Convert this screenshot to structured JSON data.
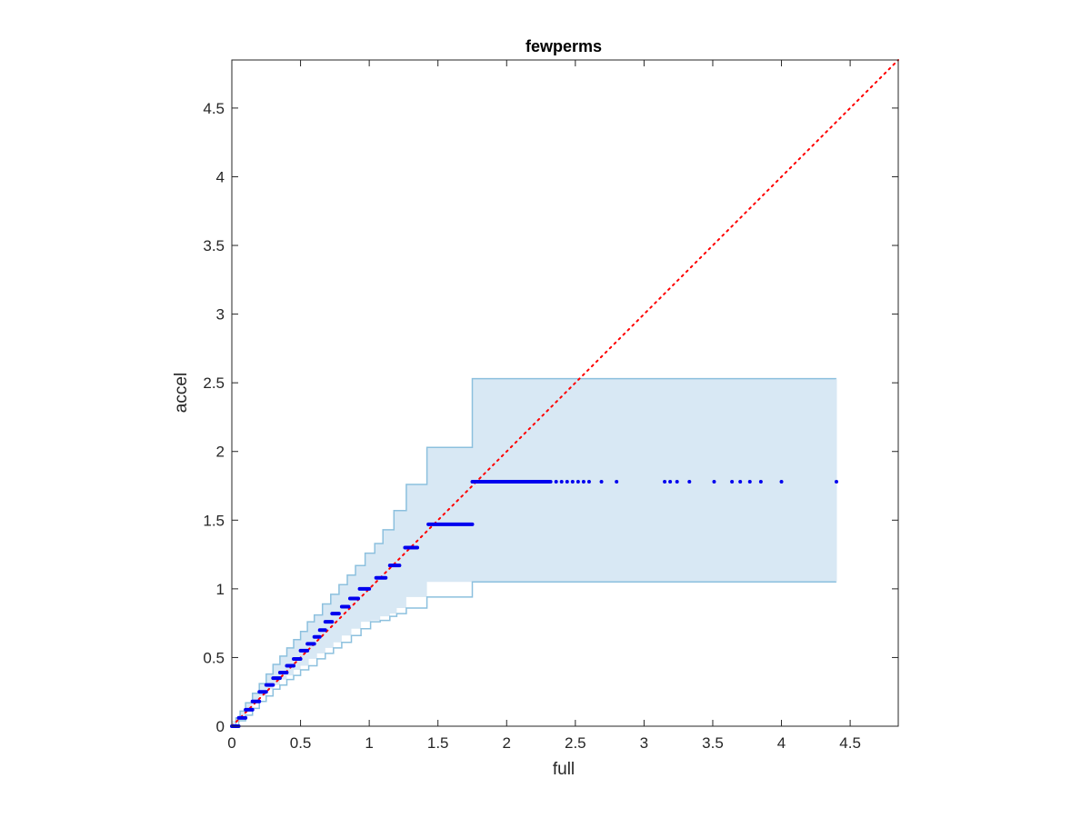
{
  "chart_data": {
    "type": "scatter",
    "title": "fewperms",
    "xlabel": "full",
    "ylabel": "accel",
    "xlim": [
      0,
      4.85
    ],
    "ylim": [
      0,
      4.85
    ],
    "xticks": [
      "0",
      "0.5",
      "1",
      "1.5",
      "2",
      "2.5",
      "3",
      "3.5",
      "4",
      "4.5"
    ],
    "yticks": [
      "0",
      "0.5",
      "1",
      "1.5",
      "2",
      "2.5",
      "3",
      "3.5",
      "4",
      "4.5"
    ],
    "grid": false,
    "reference_line": {
      "x": [
        0,
        4.85
      ],
      "y": [
        0,
        4.85
      ],
      "style": "dotted"
    },
    "band": {
      "upper": [
        [
          0,
          0
        ],
        [
          0.03,
          0.06
        ],
        [
          0.06,
          0.11
        ],
        [
          0.1,
          0.17
        ],
        [
          0.15,
          0.24
        ],
        [
          0.2,
          0.31
        ],
        [
          0.25,
          0.38
        ],
        [
          0.3,
          0.45
        ],
        [
          0.35,
          0.51
        ],
        [
          0.4,
          0.57
        ],
        [
          0.45,
          0.63
        ],
        [
          0.5,
          0.69
        ],
        [
          0.55,
          0.76
        ],
        [
          0.6,
          0.81
        ],
        [
          0.66,
          0.89
        ],
        [
          0.72,
          0.96
        ],
        [
          0.78,
          1.03
        ],
        [
          0.84,
          1.1
        ],
        [
          0.9,
          1.17
        ],
        [
          0.97,
          1.26
        ],
        [
          1.04,
          1.33
        ],
        [
          1.1,
          1.43
        ],
        [
          1.18,
          1.57
        ],
        [
          1.27,
          1.76
        ],
        [
          1.42,
          2.03
        ],
        [
          1.75,
          2.53
        ],
        [
          4.4,
          2.53
        ]
      ],
      "lower": [
        [
          0,
          0
        ],
        [
          0.05,
          0.04
        ],
        [
          0.1,
          0.08
        ],
        [
          0.15,
          0.13
        ],
        [
          0.2,
          0.18
        ],
        [
          0.25,
          0.22
        ],
        [
          0.3,
          0.27
        ],
        [
          0.35,
          0.3
        ],
        [
          0.4,
          0.34
        ],
        [
          0.45,
          0.37
        ],
        [
          0.5,
          0.41
        ],
        [
          0.56,
          0.44
        ],
        [
          0.62,
          0.49
        ],
        [
          0.68,
          0.53
        ],
        [
          0.74,
          0.57
        ],
        [
          0.8,
          0.61
        ],
        [
          0.87,
          0.66
        ],
        [
          0.94,
          0.71
        ],
        [
          1.01,
          0.76
        ],
        [
          1.08,
          0.77
        ],
        [
          1.15,
          0.8
        ],
        [
          1.2,
          0.82
        ],
        [
          1.27,
          0.86
        ],
        [
          1.42,
          0.94
        ],
        [
          1.75,
          1.05
        ],
        [
          4.4,
          1.05
        ]
      ]
    },
    "series": [
      {
        "segments": [
          [
            0,
            0.05,
            0
          ],
          [
            0.05,
            0.1,
            0.06
          ],
          [
            0.1,
            0.15,
            0.12
          ],
          [
            0.15,
            0.2,
            0.18
          ],
          [
            0.2,
            0.25,
            0.25
          ],
          [
            0.25,
            0.3,
            0.3
          ],
          [
            0.3,
            0.35,
            0.35
          ],
          [
            0.35,
            0.4,
            0.39
          ],
          [
            0.4,
            0.45,
            0.44
          ],
          [
            0.45,
            0.5,
            0.49
          ],
          [
            0.5,
            0.55,
            0.55
          ],
          [
            0.55,
            0.6,
            0.6
          ],
          [
            0.6,
            0.64,
            0.65
          ],
          [
            0.64,
            0.68,
            0.7
          ],
          [
            0.68,
            0.73,
            0.76
          ],
          [
            0.73,
            0.78,
            0.82
          ],
          [
            0.8,
            0.85,
            0.87
          ],
          [
            0.86,
            0.92,
            0.93
          ],
          [
            0.93,
            1.0,
            1.0
          ],
          [
            1.05,
            1.12,
            1.08
          ],
          [
            1.15,
            1.22,
            1.17
          ],
          [
            1.26,
            1.35,
            1.3
          ],
          [
            1.43,
            1.75,
            1.47
          ],
          [
            1.75,
            2.32,
            1.78
          ]
        ],
        "points": [
          [
            2.36,
            1.78
          ],
          [
            2.4,
            1.78
          ],
          [
            2.44,
            1.78
          ],
          [
            2.48,
            1.78
          ],
          [
            2.52,
            1.78
          ],
          [
            2.56,
            1.78
          ],
          [
            2.6,
            1.78
          ],
          [
            2.69,
            1.78
          ],
          [
            2.8,
            1.78
          ],
          [
            3.15,
            1.78
          ],
          [
            3.19,
            1.78
          ],
          [
            3.24,
            1.78
          ],
          [
            3.33,
            1.78
          ],
          [
            3.51,
            1.78
          ],
          [
            3.64,
            1.78
          ],
          [
            3.7,
            1.78
          ],
          [
            3.77,
            1.78
          ],
          [
            3.85,
            1.78
          ],
          [
            4.0,
            1.78
          ],
          [
            4.4,
            1.78
          ]
        ]
      }
    ],
    "colors": {
      "points": "#0000ee",
      "band_fill": "#d8e8f4",
      "band_edge": "#8cc0de",
      "reference": "#ff0000",
      "axis": "#262626"
    }
  }
}
